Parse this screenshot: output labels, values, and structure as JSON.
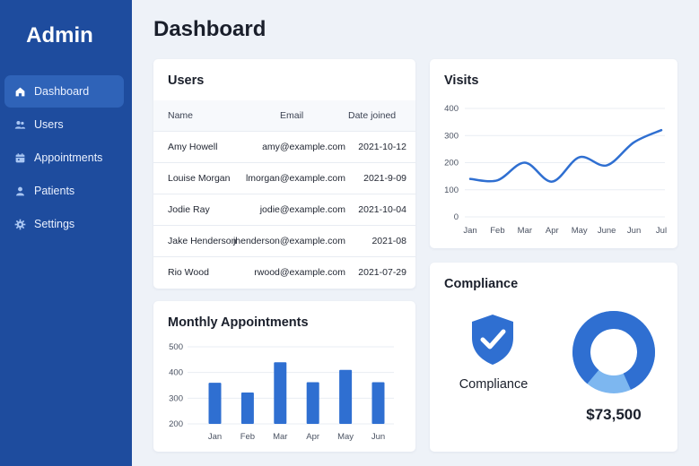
{
  "sidebar": {
    "brand": "Admin",
    "items": [
      {
        "label": "Dashboard",
        "icon": "home-icon",
        "active": true
      },
      {
        "label": "Users",
        "icon": "users-icon",
        "active": false
      },
      {
        "label": "Appointments",
        "icon": "calendar-icon",
        "active": false
      },
      {
        "label": "Patients",
        "icon": "person-icon",
        "active": false
      },
      {
        "label": "Settings",
        "icon": "gear-icon",
        "active": false
      }
    ]
  },
  "header": {
    "title": "Dashboard"
  },
  "users": {
    "title": "Users",
    "columns": [
      "Name",
      "Email",
      "Date joined"
    ],
    "rows": [
      {
        "name": "Amy Howell",
        "email": "amy@example.com",
        "date": "2021-10-12"
      },
      {
        "name": "Louise Morgan",
        "email": "lmorgan@example.com",
        "date": "2021-9-09"
      },
      {
        "name": "Jodie Ray",
        "email": "jodie@example.com",
        "date": "2021-10-04"
      },
      {
        "name": "Jake Henderson",
        "email": "jhenderson@example.com",
        "date": "2021-08"
      },
      {
        "name": "Rio Wood",
        "email": "rwood@example.com",
        "date": "2021-07-29"
      }
    ]
  },
  "visits": {
    "title": "Visits",
    "chart_data": {
      "type": "line",
      "categories": [
        "Jan",
        "Feb",
        "Mar",
        "Apr",
        "May",
        "June",
        "Jun",
        "Jul"
      ],
      "values": [
        140,
        135,
        200,
        130,
        220,
        190,
        275,
        320
      ],
      "yticks": [
        0,
        100,
        200,
        300,
        400
      ],
      "ylim": [
        0,
        400
      ],
      "grid": true,
      "color": "#2f6fd1"
    }
  },
  "appointments": {
    "title": "Monthly Appointments",
    "chart_data": {
      "type": "bar",
      "categories": [
        "Jan",
        "Feb",
        "Mar",
        "Apr",
        "May",
        "Jun"
      ],
      "values": [
        360,
        322,
        440,
        362,
        410,
        362
      ],
      "yticks": [
        200,
        300,
        400,
        500
      ],
      "ylim": [
        200,
        500
      ],
      "grid": true,
      "color": "#2f6fd1"
    }
  },
  "compliance": {
    "title": "Compliance",
    "label": "Compliance",
    "amount": "$73,500",
    "icon": "shield-check-icon",
    "donut_fraction": 0.82,
    "colors": {
      "primary": "#2f6fd1",
      "secondary": "#7db7f0"
    }
  }
}
